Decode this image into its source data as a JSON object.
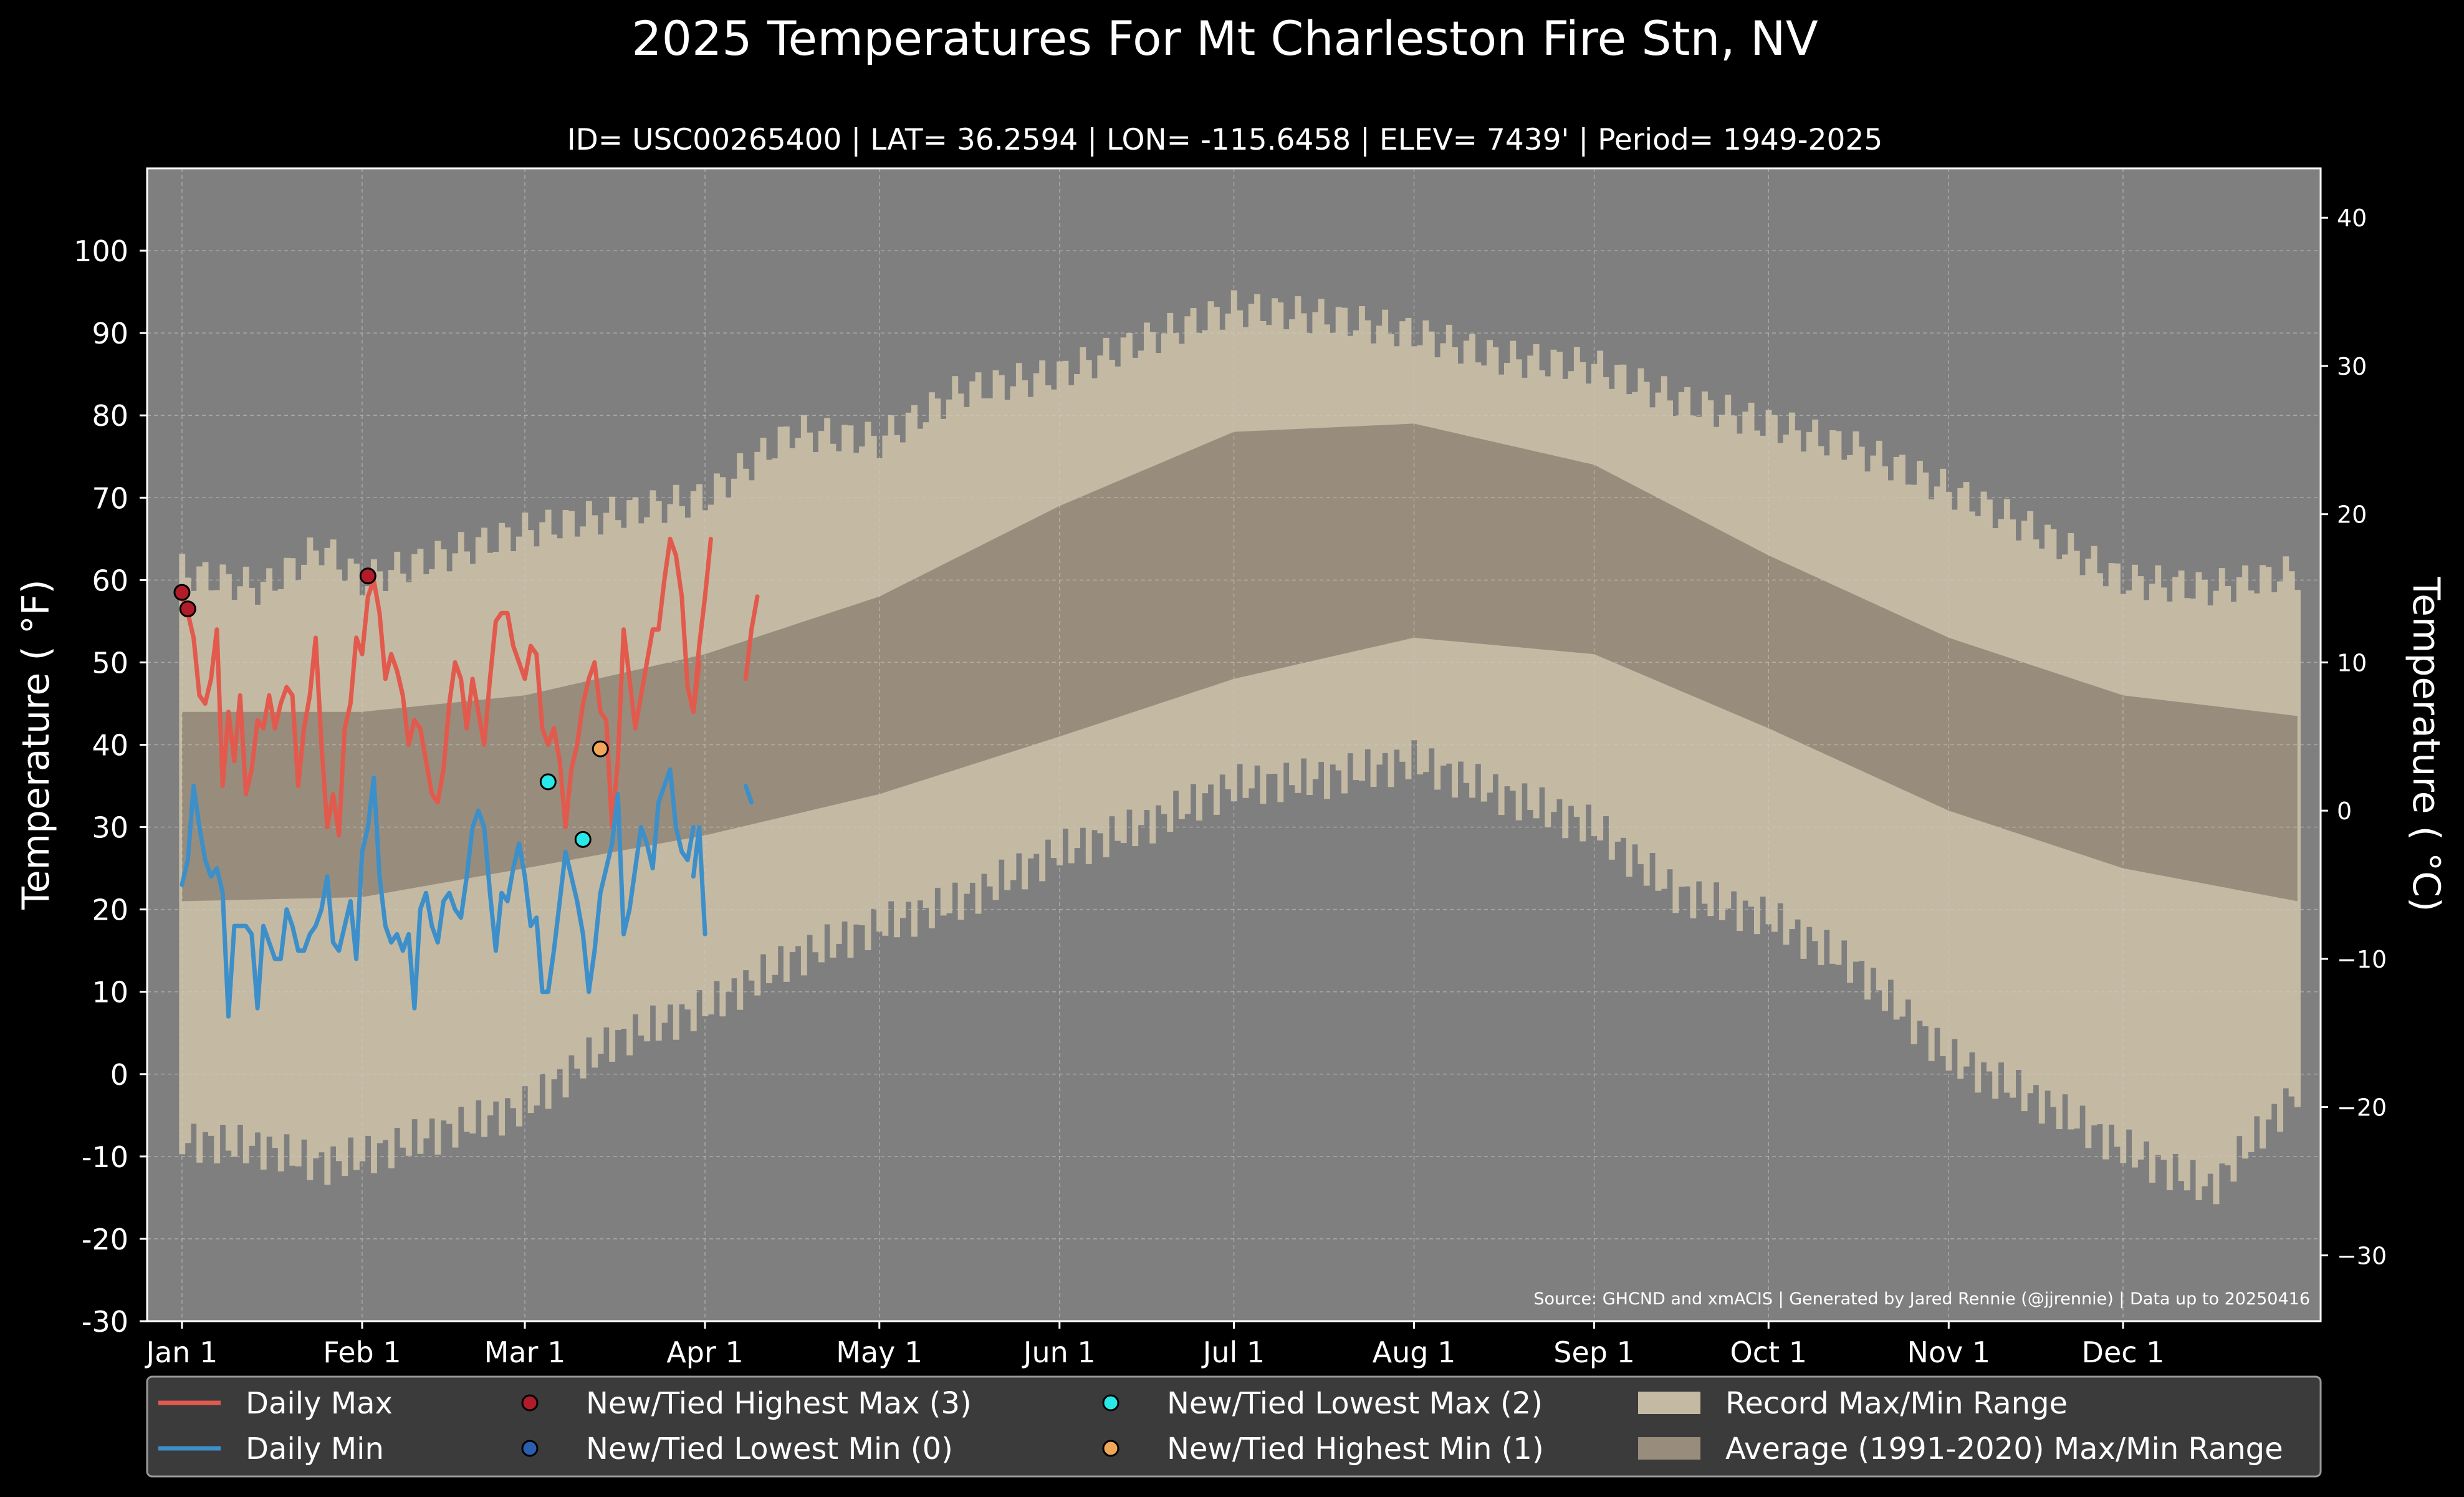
{
  "chart_data": {
    "type": "area",
    "title": "2025 Temperatures For Mt Charleston Fire Stn, NV",
    "subtitle": "ID= USC00265400 | LAT= 36.2594 | LON= -115.6458 | ELEV= 7439' | Period= 1949-2025",
    "ylabel": "Temperature ( $^\\circ$F)",
    "ylabel_display": "Temperature ( °F)",
    "ylabel_right": "Temperature ( °C)",
    "source": "Source: GHCND and xmACIS | Generated by Jared Rennie (@jjrennie) | Data up to 20250416",
    "ylim": [
      -30,
      110
    ],
    "ylim_c": [
      -34.4,
      43.3
    ],
    "grid": true,
    "legend_placement": "bottom",
    "x_tick_labels": [
      "Jan 1",
      "Feb 1",
      "Mar 1",
      "Apr 1",
      "May 1",
      "Jun 1",
      "Jul 1",
      "Aug 1",
      "Sep 1",
      "Oct 1",
      "Nov 1",
      "Dec 1"
    ],
    "x_tick_days": [
      1,
      32,
      60,
      91,
      121,
      152,
      182,
      213,
      244,
      274,
      305,
      335
    ],
    "y_ticks": [
      -30,
      -20,
      -10,
      0,
      10,
      20,
      30,
      40,
      50,
      60,
      70,
      80,
      90,
      100
    ],
    "y_ticks_c": [
      -30,
      -20,
      -10,
      0,
      10,
      20,
      30,
      40
    ],
    "record_max": {
      "days": [
        1,
        15,
        25,
        32,
        46,
        60,
        75,
        91,
        106,
        121,
        135,
        152,
        166,
        182,
        198,
        213,
        228,
        244,
        258,
        274,
        289,
        305,
        320,
        335,
        350,
        365
      ],
      "values": [
        61,
        59,
        64,
        60,
        63,
        66,
        68,
        70,
        78,
        77,
        83,
        85,
        89,
        93,
        92,
        90,
        87,
        86,
        82,
        79,
        76,
        71,
        66,
        60,
        59,
        61
      ]
    },
    "record_min": {
      "days": [
        1,
        15,
        25,
        32,
        46,
        60,
        75,
        91,
        106,
        121,
        135,
        152,
        166,
        182,
        198,
        213,
        228,
        244,
        258,
        274,
        289,
        305,
        320,
        335,
        350,
        365
      ],
      "values": [
        -8,
        -9,
        -11,
        -10,
        -7,
        -4,
        4,
        8,
        14,
        18,
        21,
        27,
        30,
        35,
        36,
        38,
        34,
        30,
        22,
        19,
        13,
        2,
        -3,
        -9,
        -14,
        -2
      ]
    },
    "avg_max": {
      "days": [
        1,
        32,
        60,
        91,
        121,
        152,
        182,
        213,
        244,
        274,
        305,
        335,
        365
      ],
      "values": [
        44,
        44,
        46,
        51,
        58,
        69,
        78,
        79,
        74,
        63,
        53,
        46,
        43.5
      ]
    },
    "avg_min": {
      "days": [
        1,
        32,
        60,
        91,
        121,
        152,
        182,
        213,
        244,
        274,
        305,
        335,
        365
      ],
      "values": [
        21,
        21.5,
        25,
        29,
        34,
        41,
        48,
        53,
        51,
        42,
        32,
        25,
        21
      ]
    },
    "series": [
      {
        "name": "Daily Max",
        "color": "#e25a4d",
        "segments": [
          {
            "start_day": 1,
            "values": [
              58,
              56,
              53,
              46,
              45,
              48,
              54,
              35,
              44,
              38,
              46,
              34,
              37,
              43,
              42,
              46,
              42,
              45,
              47,
              46,
              35,
              42,
              46,
              53,
              40,
              30,
              34,
              29,
              42,
              45,
              53,
              51,
              58,
              60,
              56,
              48,
              51,
              49,
              46,
              40,
              43,
              42,
              38,
              34,
              33,
              37,
              45,
              50,
              48,
              42,
              48,
              44,
              40,
              48,
              55,
              56,
              56,
              52,
              50,
              48,
              52,
              51,
              42,
              40,
              42,
              38,
              30,
              37,
              40,
              45,
              48,
              50,
              44,
              43,
              30,
              38,
              54,
              48,
              42,
              46,
              50,
              54,
              54,
              60,
              65,
              63,
              58,
              47,
              44,
              50
            ]
          },
          {
            "start_day": 89,
            "values": [
              44,
              52,
              58,
              65
            ]
          },
          {
            "start_day": 98,
            "values": [
              48,
              54,
              58
            ]
          }
        ]
      },
      {
        "name": "Daily Min",
        "color": "#3d8fc9",
        "segments": [
          {
            "start_day": 1,
            "values": [
              23,
              26,
              35,
              30,
              26,
              24,
              25,
              22,
              7,
              18,
              18,
              18,
              17,
              8,
              18,
              16,
              14,
              14,
              20,
              18,
              15,
              15,
              17,
              18,
              20,
              24,
              16,
              15,
              18,
              21,
              14,
              27,
              30,
              36,
              24,
              18,
              16,
              17,
              15,
              17,
              8,
              20,
              22,
              18,
              16,
              21,
              22,
              20,
              19,
              24,
              30,
              32,
              30,
              22,
              15,
              22,
              21,
              25,
              28,
              24,
              18,
              19,
              10,
              10,
              15,
              21,
              27,
              24,
              21,
              17,
              10,
              15,
              22,
              25,
              28,
              34,
              17,
              20,
              25,
              30,
              28,
              25,
              33,
              35,
              37,
              30,
              27,
              26,
              30
            ]
          },
          {
            "start_day": 89,
            "values": [
              24,
              30,
              17
            ]
          },
          {
            "start_day": 98,
            "values": [
              35,
              33
            ]
          }
        ]
      }
    ],
    "markers": [
      {
        "name": "New/Tied Highest Max",
        "color": "#b11c2b",
        "points": [
          {
            "day": 1,
            "value": 58.5
          },
          {
            "day": 2,
            "value": 56.5
          },
          {
            "day": 33,
            "value": 60.5
          }
        ]
      },
      {
        "name": "New/Tied Lowest Max",
        "color": "#29e8e8",
        "points": [
          {
            "day": 64,
            "value": 35.5
          },
          {
            "day": 70,
            "value": 28.5
          }
        ]
      },
      {
        "name": "New/Tied Highest Min",
        "color": "#f2a65a",
        "points": [
          {
            "day": 73,
            "value": 39.5
          }
        ]
      }
    ]
  },
  "legend": {
    "items": [
      {
        "label": "Daily Max",
        "kind": "line",
        "color": "#e25a4d"
      },
      {
        "label": "Daily Min",
        "kind": "line",
        "color": "#3d8fc9"
      },
      {
        "label": "New/Tied Highest Max (3)",
        "kind": "dot",
        "color": "#b11c2b"
      },
      {
        "label": "New/Tied Lowest Min (0)",
        "kind": "dot",
        "color": "#2a5fb0"
      },
      {
        "label": "New/Tied Lowest Max (2)",
        "kind": "dot",
        "color": "#29e8e8"
      },
      {
        "label": "New/Tied Highest Min (1)",
        "kind": "dot",
        "color": "#f2a65a"
      },
      {
        "label": "Record Max/Min Range",
        "kind": "patch",
        "color": "#c4baa3"
      },
      {
        "label": "Average (1991-2020) Max/Min Range",
        "kind": "patch",
        "color": "#988d7c"
      }
    ]
  },
  "colors": {
    "background": "#000000",
    "plot_background": "#7f7f7f",
    "record_band": "#c4baa3",
    "avg_band": "#988d7c",
    "grid": "#b8b8b8",
    "legend_bg": "#3b3b3b"
  }
}
